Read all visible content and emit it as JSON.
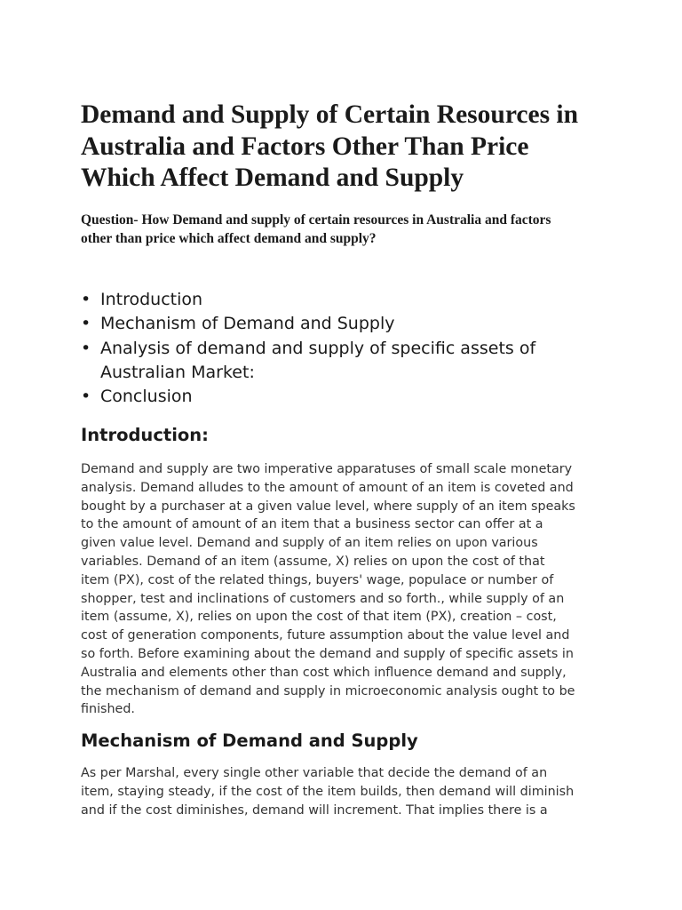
{
  "title_lines": [
    "Demand and Supply of Certain Resources in",
    "Australia and Factors Other Than Price",
    "Which Affect Demand and Supply"
  ],
  "question_lines": [
    "Question- How Demand and supply of certain resources in Australia and factors",
    "other than price which affect demand and supply?"
  ],
  "toc": [
    "Introduction",
    "Mechanism of Demand and Supply",
    "Analysis of demand and supply of specific assets of",
    "Australian Market:",
    "Conclusion"
  ],
  "introduction": {
    "heading": "Introduction:",
    "lines": [
      "Demand and supply are two imperative apparatuses of small scale monetary",
      "analysis. Demand alludes to the amount of amount of an item is coveted and",
      "bought by a purchaser at a given value level, where supply of an item speaks",
      "to the amount of amount of an item that a business sector can offer at a",
      "given value level. Demand and supply of an item relies on upon various",
      "variables. Demand of an item (assume, X) relies on upon the cost of that",
      "item (PX), cost of the related things, buyers' wage, populace or number of",
      "shopper, test and inclinations of customers and so forth., while supply of an",
      "item (assume, X), relies on upon the cost of that item (PX), creation – cost,",
      "cost of generation components, future assumption about the value level and",
      "so forth. Before examining about the demand and supply of specific assets in",
      "Australia and elements other than cost which influence demand and supply,",
      "the mechanism of demand and supply in microeconomic analysis ought to be",
      "finished."
    ]
  },
  "mechanism": {
    "heading": "Mechanism of Demand and Supply",
    "lines": [
      "As per Marshal, every single other variable that decide the demand of an",
      "item, staying steady, if the cost of the item builds, then demand will diminish",
      "and if the cost diminishes, demand will increment. That implies there is a"
    ]
  }
}
